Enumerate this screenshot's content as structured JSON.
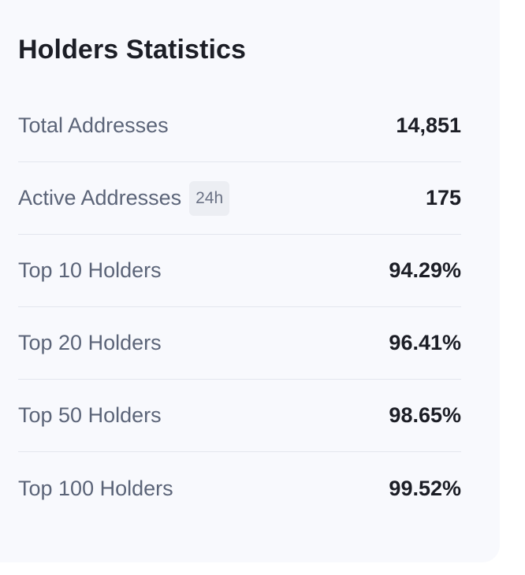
{
  "card": {
    "title": "Holders Statistics"
  },
  "stats": [
    {
      "label": "Total Addresses",
      "value": "14,851",
      "badge": ""
    },
    {
      "label": "Active Addresses",
      "value": "175",
      "badge": "24h"
    },
    {
      "label": "Top 10 Holders",
      "value": "94.29%",
      "badge": ""
    },
    {
      "label": "Top 20 Holders",
      "value": "96.41%",
      "badge": ""
    },
    {
      "label": "Top 50 Holders",
      "value": "98.65%",
      "badge": ""
    },
    {
      "label": "Top 100 Holders",
      "value": "99.52%",
      "badge": ""
    }
  ],
  "colors": {
    "card_background": "#f8f9fd",
    "label_text": "#5b6478",
    "value_text": "#1c1e26",
    "divider": "#e3e6ee",
    "badge_background": "#eceef3"
  }
}
